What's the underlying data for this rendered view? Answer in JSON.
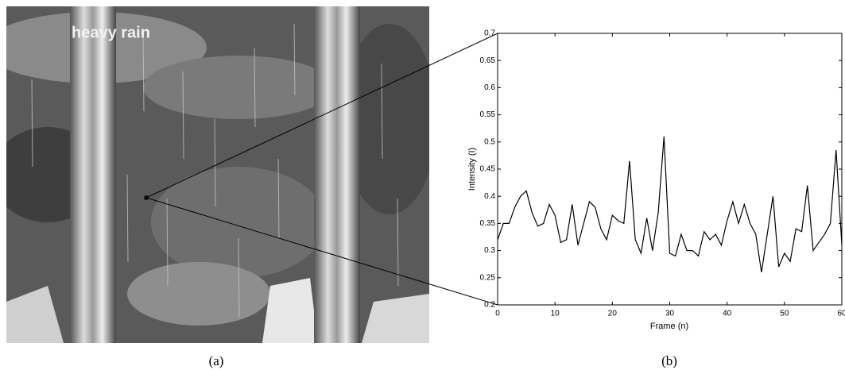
{
  "image": {
    "label": "heavy rain"
  },
  "captions": [
    "(a)",
    "(b)"
  ],
  "chart_data": {
    "type": "line",
    "xlabel": "Frame (n)",
    "ylabel": "Intensity (I)",
    "x": [
      0,
      1,
      2,
      3,
      4,
      5,
      6,
      7,
      8,
      9,
      10,
      11,
      12,
      13,
      14,
      15,
      16,
      17,
      18,
      19,
      20,
      21,
      22,
      23,
      24,
      25,
      26,
      27,
      28,
      29,
      30,
      31,
      32,
      33,
      34,
      35,
      36,
      37,
      38,
      39,
      40,
      41,
      42,
      43,
      44,
      45,
      46,
      47,
      48,
      49,
      50,
      51,
      52,
      53,
      54,
      55,
      56,
      57,
      58,
      59,
      60
    ],
    "series": [
      {
        "color": "#000000",
        "values": [
          0.32,
          0.35,
          0.35,
          0.38,
          0.4,
          0.41,
          0.37,
          0.345,
          0.35,
          0.385,
          0.365,
          0.315,
          0.32,
          0.385,
          0.31,
          0.35,
          0.39,
          0.38,
          0.34,
          0.32,
          0.365,
          0.355,
          0.35,
          0.465,
          0.32,
          0.295,
          0.36,
          0.3,
          0.37,
          0.51,
          0.295,
          0.29,
          0.33,
          0.3,
          0.3,
          0.29,
          0.335,
          0.32,
          0.33,
          0.31,
          0.355,
          0.39,
          0.35,
          0.385,
          0.35,
          0.33,
          0.26,
          0.33,
          0.4,
          0.27,
          0.295,
          0.28,
          0.34,
          0.335,
          0.42,
          0.3,
          0.315,
          0.33,
          0.35,
          0.485,
          0.31
        ]
      }
    ],
    "xlim": [
      0,
      60
    ],
    "ylim": [
      0.2,
      0.7
    ],
    "xticks": [
      0,
      10,
      20,
      30,
      40,
      50,
      60
    ],
    "yticks": [
      0.2,
      0.25,
      0.3,
      0.35,
      0.4,
      0.45,
      0.5,
      0.55,
      0.6,
      0.65,
      0.7
    ]
  }
}
